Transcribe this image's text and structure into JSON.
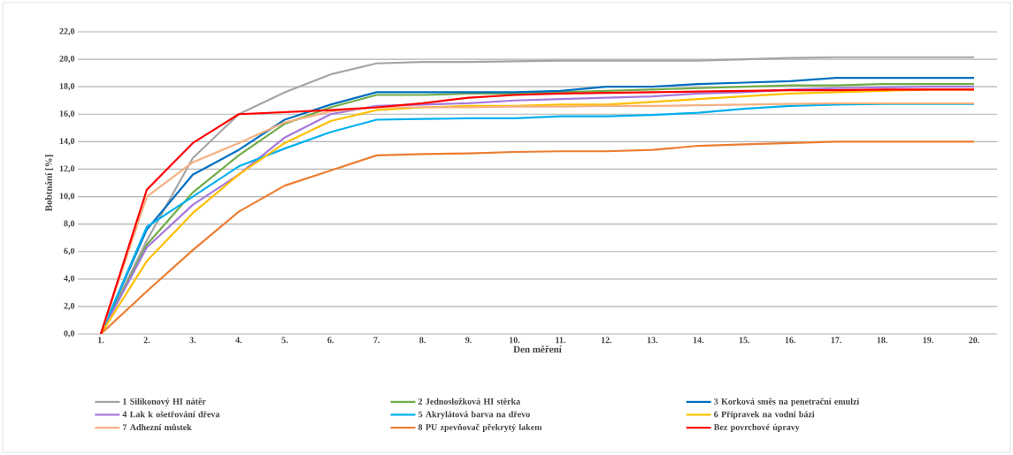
{
  "chart_data": {
    "type": "line",
    "xlabel": "Den měření",
    "ylabel": "Bobtnání [%]",
    "categories": [
      "1.",
      "2.",
      "3.",
      "4.",
      "5.",
      "6.",
      "7.",
      "8.",
      "9.",
      "10.",
      "11.",
      "12.",
      "13.",
      "14.",
      "15.",
      "16.",
      "17.",
      "18.",
      "19.",
      "20."
    ],
    "ylim": [
      0,
      22
    ],
    "yticks": [
      {
        "value": 0,
        "label": "0,0"
      },
      {
        "value": 2,
        "label": "2,0"
      },
      {
        "value": 4,
        "label": "4,0"
      },
      {
        "value": 6,
        "label": "6,0"
      },
      {
        "value": 8,
        "label": "8,0"
      },
      {
        "value": 10,
        "label": "10,0"
      },
      {
        "value": 12,
        "label": "12,0"
      },
      {
        "value": 14,
        "label": "14,0"
      },
      {
        "value": 16,
        "label": "16,0"
      },
      {
        "value": 18,
        "label": "18,0"
      },
      {
        "value": 20,
        "label": "20,0"
      },
      {
        "value": 22,
        "label": "22,0"
      }
    ],
    "grid": "y",
    "legend": "bottom",
    "marker": "none",
    "line_style": "solid",
    "series": [
      {
        "name": "1 Silikonový HI nátěr",
        "color": "#a5a5a5",
        "values": [
          0,
          6.8,
          12.8,
          16.0,
          17.6,
          18.9,
          19.7,
          19.8,
          19.8,
          19.85,
          19.9,
          19.9,
          19.9,
          19.9,
          20.0,
          20.1,
          20.15,
          20.15,
          20.15,
          20.15
        ]
      },
      {
        "name": "2 Jednosložková HI stěrka",
        "color": "#70ad47",
        "values": [
          0,
          6.5,
          10.3,
          13.0,
          15.3,
          16.5,
          17.4,
          17.4,
          17.5,
          17.5,
          17.6,
          17.7,
          17.8,
          17.9,
          18.0,
          18.1,
          18.1,
          18.2,
          18.2,
          18.2
        ]
      },
      {
        "name": "3 Korková směs na penetrační emulzi",
        "color": "#0070c0",
        "values": [
          0,
          7.6,
          11.6,
          13.4,
          15.6,
          16.7,
          17.6,
          17.6,
          17.6,
          17.6,
          17.7,
          18.0,
          18.0,
          18.2,
          18.3,
          18.4,
          18.65,
          18.65,
          18.65,
          18.65
        ]
      },
      {
        "name": "4 Lak k ošetřování dřeva",
        "color": "#a678dc",
        "values": [
          0,
          6.3,
          9.4,
          11.6,
          14.3,
          16.0,
          16.6,
          16.7,
          16.8,
          17.0,
          17.1,
          17.2,
          17.3,
          17.5,
          17.6,
          17.8,
          17.9,
          17.95,
          18.0,
          18.0
        ]
      },
      {
        "name": "5 Akrylátová barva na dřevo",
        "color": "#00b0f0",
        "values": [
          0,
          7.8,
          10.0,
          12.2,
          13.5,
          14.7,
          15.6,
          15.65,
          15.7,
          15.7,
          15.85,
          15.85,
          15.95,
          16.1,
          16.4,
          16.6,
          16.7,
          16.75,
          16.75,
          16.75
        ]
      },
      {
        "name": "6 Přípravek na vodní bázi",
        "color": "#ffc000",
        "values": [
          0,
          5.3,
          8.8,
          11.6,
          13.9,
          15.5,
          16.3,
          16.5,
          16.6,
          16.6,
          16.7,
          16.7,
          16.9,
          17.1,
          17.3,
          17.5,
          17.6,
          17.7,
          17.8,
          17.8
        ]
      },
      {
        "name": "7 Adhezní můstek",
        "color": "#f4b183",
        "values": [
          0,
          10.0,
          12.5,
          13.9,
          15.4,
          16.2,
          16.5,
          16.5,
          16.5,
          16.55,
          16.55,
          16.6,
          16.6,
          16.65,
          16.7,
          16.75,
          16.8,
          16.8,
          16.8,
          16.8
        ]
      },
      {
        "name": "8 PU zpevňovač překrytý lakem",
        "color": "#ed7d31",
        "values": [
          0,
          3.1,
          6.1,
          8.9,
          10.8,
          11.9,
          13.0,
          13.1,
          13.15,
          13.25,
          13.3,
          13.3,
          13.4,
          13.7,
          13.8,
          13.9,
          14.0,
          14.0,
          14.0,
          14.0
        ]
      },
      {
        "name": "Bez povrchové úpravy",
        "color": "#ff0000",
        "values": [
          0,
          10.5,
          13.9,
          16.0,
          16.15,
          16.3,
          16.5,
          16.8,
          17.2,
          17.4,
          17.5,
          17.55,
          17.6,
          17.65,
          17.7,
          17.75,
          17.75,
          17.8,
          17.8,
          17.8
        ]
      }
    ]
  }
}
